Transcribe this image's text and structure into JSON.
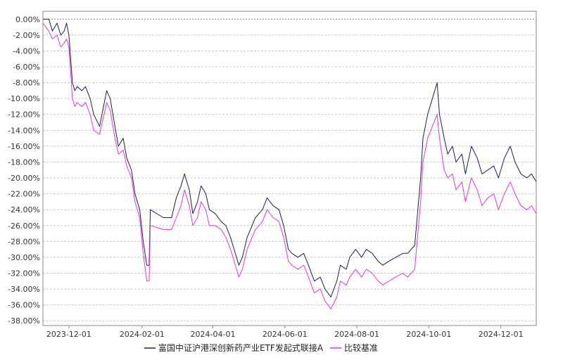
{
  "chart_data": {
    "type": "line",
    "title": "",
    "xlabel": "",
    "ylabel": "",
    "ylim": [
      -38,
      0
    ],
    "y_ticks": [
      0,
      -2,
      -4,
      -6,
      -8,
      -10,
      -12,
      -14,
      -16,
      -18,
      -20,
      -22,
      -24,
      -26,
      -28,
      -30,
      -32,
      -34,
      -36,
      -38
    ],
    "y_tick_labels": [
      "0.00%",
      "-2.00%",
      "-4.00%",
      "-6.00%",
      "-8.00%",
      "-10.00%",
      "-12.00%",
      "-14.00%",
      "-16.00%",
      "-18.00%",
      "-20.00%",
      "-22.00%",
      "-24.00%",
      "-26.00%",
      "-28.00%",
      "-30.00%",
      "-32.00%",
      "-34.00%",
      "-36.00%",
      "-38.00%"
    ],
    "x_range": [
      "2023-11-09",
      "2024-12-31"
    ],
    "x_ticks": [
      "2023-12-01",
      "2024-02-01",
      "2024-04-01",
      "2024-06-01",
      "2024-08-01",
      "2024-10-01",
      "2024-12-01"
    ],
    "grid": true,
    "legend_position": "bottom-center",
    "series": [
      {
        "name": "富国中证沪港深创新药产业ETF发起式联接A",
        "color": "#1c1c5e",
        "points": [
          [
            "2023-11-09",
            0.0
          ],
          [
            "2023-11-14",
            0.0
          ],
          [
            "2023-11-17",
            -1.5
          ],
          [
            "2023-11-21",
            -0.5
          ],
          [
            "2023-11-24",
            -2.0
          ],
          [
            "2023-11-27",
            -1.5
          ],
          [
            "2023-11-29",
            -0.5
          ],
          [
            "2023-12-01",
            -2.0
          ],
          [
            "2023-12-04",
            -8.0
          ],
          [
            "2023-12-06",
            -9.0
          ],
          [
            "2023-12-08",
            -8.5
          ],
          [
            "2023-12-12",
            -9.0
          ],
          [
            "2023-12-15",
            -8.5
          ],
          [
            "2023-12-19",
            -10.0
          ],
          [
            "2023-12-22",
            -12.0
          ],
          [
            "2023-12-27",
            -13.5
          ],
          [
            "2024-01-02",
            -9.0
          ],
          [
            "2024-01-05",
            -10.0
          ],
          [
            "2024-01-09",
            -13.5
          ],
          [
            "2024-01-12",
            -16.0
          ],
          [
            "2024-01-16",
            -15.0
          ],
          [
            "2024-01-19",
            -17.5
          ],
          [
            "2024-01-23",
            -19.0
          ],
          [
            "2024-01-26",
            -22.0
          ],
          [
            "2024-01-30",
            -24.0
          ],
          [
            "2024-02-02",
            -28.0
          ],
          [
            "2024-02-05",
            -31.0
          ],
          [
            "2024-02-07",
            -31.0
          ],
          [
            "2024-02-08",
            -24.0
          ],
          [
            "2024-02-19",
            -25.0
          ],
          [
            "2024-02-26",
            -25.0
          ],
          [
            "2024-03-01",
            -22.5
          ],
          [
            "2024-03-05",
            -21.0
          ],
          [
            "2024-03-08",
            -19.5
          ],
          [
            "2024-03-12",
            -21.5
          ],
          [
            "2024-03-15",
            -24.5
          ],
          [
            "2024-03-19",
            -23.0
          ],
          [
            "2024-03-22",
            -21.0
          ],
          [
            "2024-03-26",
            -22.0
          ],
          [
            "2024-03-29",
            -24.0
          ],
          [
            "2024-04-03",
            -24.5
          ],
          [
            "2024-04-08",
            -25.5
          ],
          [
            "2024-04-12",
            -26.0
          ],
          [
            "2024-04-16",
            -27.5
          ],
          [
            "2024-04-19",
            -29.0
          ],
          [
            "2024-04-23",
            -31.0
          ],
          [
            "2024-04-26",
            -30.0
          ],
          [
            "2024-04-30",
            -27.5
          ],
          [
            "2024-05-07",
            -25.0
          ],
          [
            "2024-05-13",
            -24.0
          ],
          [
            "2024-05-17",
            -22.5
          ],
          [
            "2024-05-22",
            -23.5
          ],
          [
            "2024-05-27",
            -24.0
          ],
          [
            "2024-05-31",
            -26.0
          ],
          [
            "2024-06-04",
            -29.0
          ],
          [
            "2024-06-07",
            -29.5
          ],
          [
            "2024-06-12",
            -30.0
          ],
          [
            "2024-06-17",
            -29.5
          ],
          [
            "2024-06-21",
            -31.0
          ],
          [
            "2024-06-26",
            -33.0
          ],
          [
            "2024-07-01",
            -32.5
          ],
          [
            "2024-07-05",
            -34.0
          ],
          [
            "2024-07-10",
            -35.0
          ],
          [
            "2024-07-15",
            -33.0
          ],
          [
            "2024-07-18",
            -31.0
          ],
          [
            "2024-07-23",
            -31.5
          ],
          [
            "2024-07-26",
            -30.0
          ],
          [
            "2024-07-31",
            -29.0
          ],
          [
            "2024-08-05",
            -30.0
          ],
          [
            "2024-08-09",
            -29.0
          ],
          [
            "2024-08-14",
            -29.5
          ],
          [
            "2024-08-19",
            -30.5
          ],
          [
            "2024-08-23",
            -31.0
          ],
          [
            "2024-08-28",
            -30.5
          ],
          [
            "2024-09-03",
            -30.0
          ],
          [
            "2024-09-09",
            -29.5
          ],
          [
            "2024-09-13",
            -29.5
          ],
          [
            "2024-09-19",
            -28.5
          ],
          [
            "2024-09-24",
            -20.0
          ],
          [
            "2024-09-26",
            -15.0
          ],
          [
            "2024-09-30",
            -12.0
          ],
          [
            "2024-10-08",
            -8.0
          ],
          [
            "2024-10-10",
            -12.0
          ],
          [
            "2024-10-14",
            -15.0
          ],
          [
            "2024-10-17",
            -17.0
          ],
          [
            "2024-10-21",
            -16.0
          ],
          [
            "2024-10-24",
            -18.0
          ],
          [
            "2024-10-29",
            -17.0
          ],
          [
            "2024-11-01",
            -19.5
          ],
          [
            "2024-11-06",
            -16.0
          ],
          [
            "2024-11-11",
            -17.5
          ],
          [
            "2024-11-15",
            -19.5
          ],
          [
            "2024-11-20",
            -19.0
          ],
          [
            "2024-11-25",
            -18.5
          ],
          [
            "2024-11-29",
            -20.0
          ],
          [
            "2024-12-04",
            -17.5
          ],
          [
            "2024-12-09",
            -16.0
          ],
          [
            "2024-12-13",
            -18.0
          ],
          [
            "2024-12-18",
            -19.5
          ],
          [
            "2024-12-23",
            -20.0
          ],
          [
            "2024-12-27",
            -19.5
          ],
          [
            "2024-12-31",
            -20.5
          ]
        ]
      },
      {
        "name": "比较基准",
        "color": "#e535e5",
        "points": [
          [
            "2023-11-09",
            -0.5
          ],
          [
            "2023-11-14",
            -1.5
          ],
          [
            "2023-11-17",
            -2.5
          ],
          [
            "2023-11-21",
            -2.0
          ],
          [
            "2023-11-24",
            -3.5
          ],
          [
            "2023-11-27",
            -3.0
          ],
          [
            "2023-11-29",
            -2.5
          ],
          [
            "2023-12-01",
            -3.5
          ],
          [
            "2023-12-04",
            -10.0
          ],
          [
            "2023-12-06",
            -11.0
          ],
          [
            "2023-12-08",
            -10.5
          ],
          [
            "2023-12-12",
            -11.0
          ],
          [
            "2023-12-15",
            -10.5
          ],
          [
            "2023-12-19",
            -12.0
          ],
          [
            "2023-12-22",
            -14.0
          ],
          [
            "2023-12-27",
            -14.5
          ],
          [
            "2024-01-02",
            -10.5
          ],
          [
            "2024-01-05",
            -11.5
          ],
          [
            "2024-01-09",
            -15.0
          ],
          [
            "2024-01-12",
            -17.0
          ],
          [
            "2024-01-16",
            -16.5
          ],
          [
            "2024-01-19",
            -18.5
          ],
          [
            "2024-01-23",
            -20.0
          ],
          [
            "2024-01-26",
            -23.0
          ],
          [
            "2024-01-30",
            -25.0
          ],
          [
            "2024-02-02",
            -29.5
          ],
          [
            "2024-02-05",
            -33.0
          ],
          [
            "2024-02-07",
            -33.0
          ],
          [
            "2024-02-08",
            -26.0
          ],
          [
            "2024-02-19",
            -26.5
          ],
          [
            "2024-02-26",
            -26.5
          ],
          [
            "2024-03-01",
            -25.0
          ],
          [
            "2024-03-05",
            -23.5
          ],
          [
            "2024-03-08",
            -21.5
          ],
          [
            "2024-03-12",
            -23.5
          ],
          [
            "2024-03-15",
            -26.0
          ],
          [
            "2024-03-19",
            -25.0
          ],
          [
            "2024-03-22",
            -23.0
          ],
          [
            "2024-03-26",
            -24.0
          ],
          [
            "2024-03-29",
            -26.0
          ],
          [
            "2024-04-03",
            -26.0
          ],
          [
            "2024-04-08",
            -26.5
          ],
          [
            "2024-04-12",
            -27.5
          ],
          [
            "2024-04-16",
            -29.0
          ],
          [
            "2024-04-19",
            -30.5
          ],
          [
            "2024-04-23",
            -32.5
          ],
          [
            "2024-04-26",
            -31.5
          ],
          [
            "2024-04-30",
            -29.0
          ],
          [
            "2024-05-07",
            -26.5
          ],
          [
            "2024-05-13",
            -25.5
          ],
          [
            "2024-05-17",
            -24.0
          ],
          [
            "2024-05-22",
            -25.0
          ],
          [
            "2024-05-27",
            -25.5
          ],
          [
            "2024-05-31",
            -27.5
          ],
          [
            "2024-06-04",
            -30.5
          ],
          [
            "2024-06-07",
            -31.0
          ],
          [
            "2024-06-12",
            -31.5
          ],
          [
            "2024-06-17",
            -31.0
          ],
          [
            "2024-06-21",
            -32.5
          ],
          [
            "2024-06-26",
            -34.5
          ],
          [
            "2024-07-01",
            -34.0
          ],
          [
            "2024-07-05",
            -35.5
          ],
          [
            "2024-07-10",
            -36.5
          ],
          [
            "2024-07-15",
            -35.0
          ],
          [
            "2024-07-18",
            -33.0
          ],
          [
            "2024-07-23",
            -33.5
          ],
          [
            "2024-07-26",
            -32.5
          ],
          [
            "2024-07-31",
            -31.5
          ],
          [
            "2024-08-05",
            -32.5
          ],
          [
            "2024-08-09",
            -31.5
          ],
          [
            "2024-08-14",
            -32.0
          ],
          [
            "2024-08-19",
            -33.0
          ],
          [
            "2024-08-23",
            -33.5
          ],
          [
            "2024-08-28",
            -33.0
          ],
          [
            "2024-09-03",
            -32.5
          ],
          [
            "2024-09-09",
            -32.0
          ],
          [
            "2024-09-13",
            -32.5
          ],
          [
            "2024-09-19",
            -31.5
          ],
          [
            "2024-09-24",
            -23.0
          ],
          [
            "2024-09-26",
            -18.0
          ],
          [
            "2024-09-30",
            -15.0
          ],
          [
            "2024-10-08",
            -12.0
          ],
          [
            "2024-10-10",
            -15.0
          ],
          [
            "2024-10-14",
            -19.0
          ],
          [
            "2024-10-17",
            -20.0
          ],
          [
            "2024-10-21",
            -19.5
          ],
          [
            "2024-10-24",
            -21.5
          ],
          [
            "2024-10-29",
            -20.5
          ],
          [
            "2024-11-01",
            -23.0
          ],
          [
            "2024-11-06",
            -20.0
          ],
          [
            "2024-11-11",
            -21.5
          ],
          [
            "2024-11-15",
            -23.5
          ],
          [
            "2024-11-20",
            -22.5
          ],
          [
            "2024-11-25",
            -22.0
          ],
          [
            "2024-11-29",
            -24.0
          ],
          [
            "2024-12-04",
            -22.0
          ],
          [
            "2024-12-09",
            -20.5
          ],
          [
            "2024-12-13",
            -22.0
          ],
          [
            "2024-12-18",
            -23.5
          ],
          [
            "2024-12-23",
            -24.0
          ],
          [
            "2024-12-27",
            -23.5
          ],
          [
            "2024-12-31",
            -24.5
          ]
        ]
      }
    ]
  }
}
